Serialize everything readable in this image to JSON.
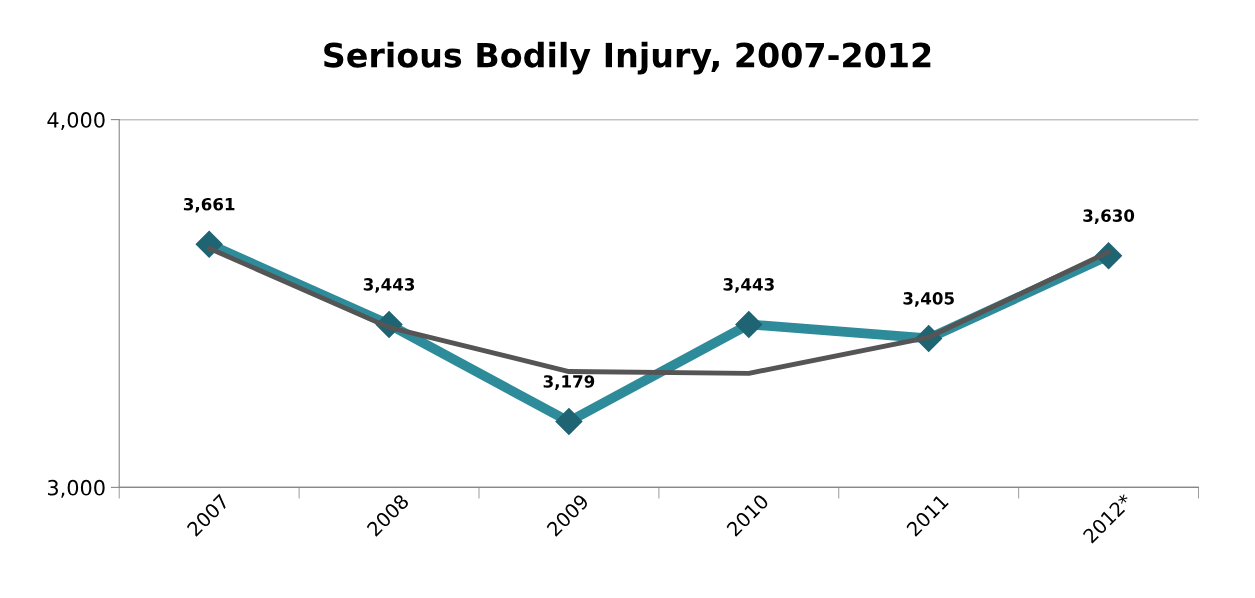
{
  "chart_data": {
    "type": "line",
    "title": "Serious Bodily Injury, 2007-2012",
    "categories": [
      "2007",
      "2008",
      "2009",
      "2010",
      "2011",
      "2012*"
    ],
    "series": [
      {
        "color": "#2e8b9a",
        "values": [
          3661,
          3443,
          3179,
          3443,
          3405,
          3630
        ],
        "value_labels": [
          "3,661",
          "3,443",
          "3,179",
          "3,443",
          "3,405",
          "3,630"
        ],
        "marker": "diamond"
      },
      {
        "type": "line",
        "color": "#555555",
        "values": [
          3650,
          3435,
          3315,
          3310,
          3408,
          3640
        ],
        "marker": "none"
      }
    ],
    "ylim": [
      3000,
      4000
    ],
    "yticks": [
      {
        "value": 3000,
        "label": "3,000"
      },
      {
        "value": 4000,
        "label": "4,000"
      }
    ],
    "grid": "y",
    "legend": false
  }
}
